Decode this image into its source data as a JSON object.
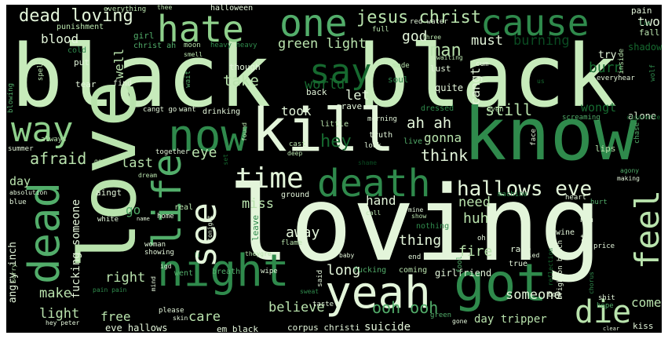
{
  "palette": {
    "background": "#000000",
    "pale": "#e3f5da",
    "light": "#b9e3ad",
    "mid_light": "#8fd08c",
    "mid": "#52ad6a",
    "mid_dark": "#2f8a4c",
    "dark": "#16692f",
    "darkest": "#0a4a21"
  },
  "words": {
    "w_black1": "black",
    "w_black2": "black",
    "w_loving": "loving",
    "w_love": "love",
    "w_know": "know",
    "w_kill": "kill",
    "w_now": "now",
    "w_night": "night",
    "w_yeah": "yeah",
    "w_got": "got",
    "w_dead": "dead",
    "w_life": "life",
    "w_see": "see",
    "w_death": "death",
    "w_time": "time",
    "w_way": "way",
    "w_hate": "hate",
    "w_one": "one",
    "w_cause": "cause",
    "w_say": "say",
    "w_feel": "feel",
    "w_die": "die",
    "w_hallows_eve": "hallows eve",
    "w_dead_loving": "dead loving",
    "w_jesus_christ": "jesus christ",
    "w_green_light": "green light",
    "w_blood": "blood",
    "w_god": "god",
    "w_man": "man",
    "w_must": "must",
    "w_burning": "burning",
    "w_two": "two",
    "w_burn": "burn",
    "w_still": "still",
    "w_ah_ah": "ah ah",
    "w_hey": "hey",
    "w_took": "took",
    "w_gonna": "gonna",
    "w_think": "think",
    "w_afraid": "afraid",
    "w_eye": "eye",
    "w_last": "last",
    "w_take": "take",
    "w_world": "world",
    "w_let": "let",
    "w_miss": "miss",
    "w_go": "go",
    "w_away": "away",
    "w_hand": "hand",
    "w_need": "need",
    "w_huh": "huh",
    "w_thing": "thing",
    "w_fire": "fire",
    "w_long": "long",
    "w_ooh_ooh": "ooh ooh",
    "w_believe": "believe",
    "w_someone": "someone",
    "w_day_tripper": "day tripper",
    "w_make": "make",
    "w_right": "right",
    "w_light": "light",
    "w_free": "free",
    "w_care": "care",
    "w_eve_hallows": "eve hallows",
    "w_em_black": "em black",
    "w_corpus_christi": "corpus christi",
    "w_suicide": "suicide",
    "w_come": "come",
    "w_angry_inch": "angry inch",
    "w_fucking_someone": "fucking someone",
    "w_day": "day",
    "w_well": "well",
    "w_cangt": "cangt",
    "w_wongt": "wongt",
    "w_alone": "alone",
    "w_kiss": "kiss",
    "w_girlfriend": "girlfriend",
    "w_coming": "coming",
    "w_fucking": "fucking",
    "w_halloween": "halloween",
    "w_punishment": "punishment",
    "w_everything": "everything",
    "w_girl": "girl",
    "w_christ_ah": "christ ah",
    "w_moon": "moon",
    "w_heavy_heavy": "heavy heavy",
    "w_put": "put",
    "w_cold": "cold",
    "w_spell": "spell",
    "w_tear": "tear",
    "w_blowing": "blowing",
    "w_three": "three",
    "w_red_water": "red water",
    "w_full": "full",
    "w_waiting": "waiting",
    "w_lust": "lust",
    "w_made": "made",
    "w_soul": "soul",
    "w_cum": "cum",
    "w_quite": "quite",
    "w_try": "try",
    "w_fall": "fall",
    "w_pain": "pain",
    "w_shadow": "shadow",
    "w_everyhear": "everyhear",
    "w_wolf": "wolf",
    "w_inside": "inside",
    "w_find": "find",
    "w_wait": "wait",
    "w_want": "want",
    "w_drinking": "drinking",
    "w_cangt_go": "cangt go",
    "w_though": "though",
    "w_back": "back",
    "w_grave": "grave",
    "w_dressed": "dressed",
    "w_even": "even",
    "w_screaming": "screaming",
    "w_little": "little",
    "w_morning": "morning",
    "w_truth": "truth",
    "w_live": "live",
    "w_look": "look",
    "w_cast": "cast",
    "w_deep": "deep",
    "w_together": "together",
    "w_summer": "summer",
    "w_always": "always",
    "w_good": "good",
    "w_dream": "dream",
    "w_absolution": "absolution",
    "w_blue": "blue",
    "w_aingt": "aingt",
    "w_ground": "ground",
    "w_call": "call",
    "w_mine": "mine",
    "w_show": "show",
    "w_nothing": "nothing",
    "w_fool": "fool",
    "w_oh": "oh",
    "w_rage": "rage",
    "w_run": "run",
    "w_wine": "wine",
    "w_heart": "heart",
    "w_hurt": "hurt",
    "w_making": "making",
    "w_agony": "agony",
    "w_face": "face",
    "w_lips": "lips",
    "w_chase": "chase",
    "w_cigarette": "cigarette",
    "w_machine": "machine",
    "w_brighton_beach": "brighton beach",
    "w_reflection": "reflection",
    "w_lost": "lost",
    "w_price": "price",
    "w_died": "died",
    "w_true": "true",
    "w_end": "end",
    "w_baby": "baby",
    "w_flame": "flame",
    "w_theygre": "theygre",
    "w_wipe": "wipe",
    "w_breath": "breath",
    "w_woman": "woman",
    "w_showing": "showing",
    "w_tonight": "tonight",
    "w_real": "real",
    "w_leave": "leave",
    "w_white": "white",
    "w_name": "name",
    "w_home": "home",
    "w_sorry": "sorry",
    "w_igd": "igd",
    "w_went": "went",
    "w_mind": "mind",
    "w_skin": "skin",
    "w_please": "please",
    "w_hey_peter": "hey peter",
    "w_pain_pain": "pain pain",
    "w_taste": "taste",
    "w_sweat": "sweat",
    "w_said": "said",
    "w_green": "green",
    "w_gone": "gone",
    "w_boy": "boy",
    "w_shit": "shit",
    "w_hope": "hope",
    "w_clear": "clear",
    "w_thee": "thee",
    "w_us": "us",
    "w_lie": "lie",
    "w_smell": "smell",
    "w_shame": "shame",
    "w_set": "set",
    "w_found": "found",
    "w_chorus": "chorus"
  }
}
